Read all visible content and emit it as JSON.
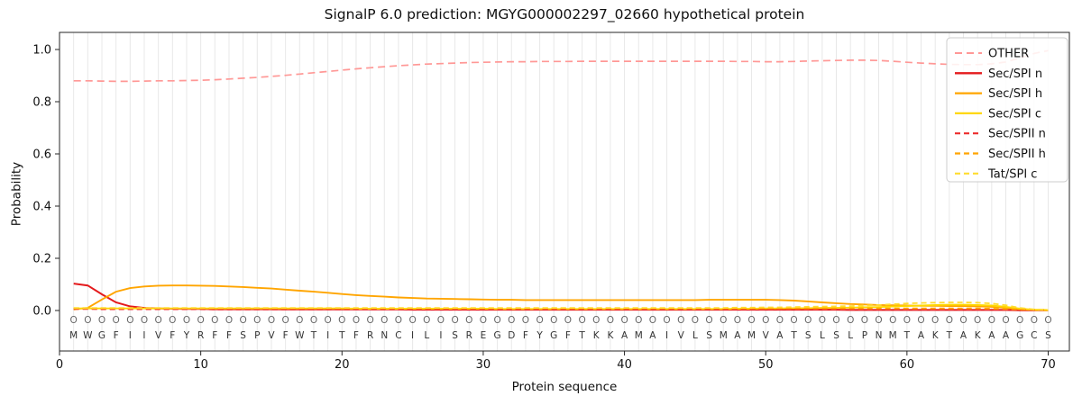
{
  "figure": {
    "title": "SignalP 6.0 prediction: MGYG000002297_02660 hypothetical protein",
    "xlabel": "Protein sequence",
    "ylabel": "Probability"
  },
  "chart_data": {
    "type": "line",
    "title": "SignalP 6.0 prediction: MGYG000002297_02660 hypothetical protein",
    "xlabel": "Protein sequence",
    "ylabel": "Probability",
    "xlim": [
      0,
      71.5
    ],
    "ylim": [
      -0.155,
      1.065
    ],
    "x_ticks": [
      0,
      10,
      20,
      30,
      40,
      50,
      60,
      70
    ],
    "y_ticks": [
      0.0,
      0.2,
      0.4,
      0.6,
      0.8,
      1.0
    ],
    "grid": "vertical line at every residue position",
    "legend_position": "upper right",
    "sequence": "MWGFIIVFYRFFSPVFWTITFRNCILISREGDFYGFTKKAMAIVLSMAMVATSLSLPNMTAKTAKAAGCS",
    "predicted_labels": "OOOOOOOOOOOOOOOOOOOOOOOOOOOOOOOOOOOOOOOOOOOOOOOOOOOOOOOOOOOOOOOOOOOOOO",
    "x": [
      1,
      2,
      3,
      4,
      5,
      6,
      7,
      8,
      9,
      10,
      11,
      12,
      13,
      14,
      15,
      16,
      17,
      18,
      19,
      20,
      21,
      22,
      23,
      24,
      25,
      26,
      27,
      28,
      29,
      30,
      31,
      32,
      33,
      34,
      35,
      36,
      37,
      38,
      39,
      40,
      41,
      42,
      43,
      44,
      45,
      46,
      47,
      48,
      49,
      50,
      51,
      52,
      53,
      54,
      55,
      56,
      57,
      58,
      59,
      60,
      61,
      62,
      63,
      64,
      65,
      66,
      67,
      68,
      69,
      70
    ],
    "series": [
      {
        "name": "OTHER",
        "color": "#ff9896",
        "dash": "8,5",
        "width": 1.7,
        "values": [
          0.88,
          0.88,
          0.879,
          0.878,
          0.878,
          0.879,
          0.88,
          0.88,
          0.881,
          0.882,
          0.884,
          0.887,
          0.89,
          0.893,
          0.897,
          0.901,
          0.906,
          0.911,
          0.916,
          0.921,
          0.926,
          0.93,
          0.934,
          0.938,
          0.941,
          0.944,
          0.946,
          0.948,
          0.95,
          0.951,
          0.952,
          0.953,
          0.953,
          0.954,
          0.954,
          0.954,
          0.955,
          0.955,
          0.955,
          0.955,
          0.955,
          0.955,
          0.955,
          0.955,
          0.955,
          0.955,
          0.955,
          0.954,
          0.954,
          0.953,
          0.953,
          0.954,
          0.956,
          0.957,
          0.958,
          0.959,
          0.959,
          0.958,
          0.955,
          0.951,
          0.948,
          0.945,
          0.943,
          0.942,
          0.942,
          0.945,
          0.952,
          0.968,
          0.985,
          0.996
        ]
      },
      {
        "name": "Sec/SPI n",
        "color": "#e41a1c",
        "dash": null,
        "width": 2,
        "values": [
          0.103,
          0.096,
          0.062,
          0.031,
          0.016,
          0.01,
          0.008,
          0.007,
          0.006,
          0.006,
          0.005,
          0.005,
          0.005,
          0.005,
          0.005,
          0.004,
          0.004,
          0.004,
          0.004,
          0.004,
          0.004,
          0.004,
          0.004,
          0.004,
          0.003,
          0.003,
          0.003,
          0.003,
          0.003,
          0.003,
          0.003,
          0.003,
          0.003,
          0.003,
          0.003,
          0.003,
          0.003,
          0.003,
          0.003,
          0.003,
          0.003,
          0.003,
          0.003,
          0.003,
          0.003,
          0.003,
          0.003,
          0.003,
          0.003,
          0.003,
          0.003,
          0.003,
          0.003,
          0.003,
          0.003,
          0.002,
          0.002,
          0.002,
          0.002,
          0.002,
          0.002,
          0.002,
          0.002,
          0.002,
          0.002,
          0.002,
          0.002,
          0.001,
          0.001,
          0.001
        ]
      },
      {
        "name": "Sec/SPI h",
        "color": "#ffa500",
        "dash": null,
        "width": 1.9,
        "values": [
          0.004,
          0.01,
          0.042,
          0.072,
          0.086,
          0.092,
          0.095,
          0.096,
          0.096,
          0.095,
          0.094,
          0.092,
          0.09,
          0.087,
          0.084,
          0.08,
          0.076,
          0.072,
          0.068,
          0.063,
          0.059,
          0.056,
          0.053,
          0.05,
          0.048,
          0.046,
          0.045,
          0.044,
          0.043,
          0.042,
          0.041,
          0.041,
          0.04,
          0.04,
          0.04,
          0.04,
          0.04,
          0.04,
          0.04,
          0.04,
          0.04,
          0.04,
          0.04,
          0.04,
          0.04,
          0.041,
          0.041,
          0.041,
          0.041,
          0.041,
          0.04,
          0.038,
          0.035,
          0.031,
          0.028,
          0.025,
          0.023,
          0.021,
          0.02,
          0.019,
          0.018,
          0.018,
          0.017,
          0.017,
          0.016,
          0.014,
          0.01,
          0.005,
          0.002,
          0.001
        ]
      },
      {
        "name": "Sec/SPI c",
        "color": "#ffd700",
        "dash": null,
        "width": 1.9,
        "values": [
          0.008,
          0.008,
          0.008,
          0.008,
          0.008,
          0.008,
          0.008,
          0.008,
          0.008,
          0.008,
          0.008,
          0.008,
          0.008,
          0.008,
          0.008,
          0.008,
          0.008,
          0.008,
          0.008,
          0.008,
          0.007,
          0.007,
          0.007,
          0.007,
          0.007,
          0.007,
          0.007,
          0.007,
          0.007,
          0.007,
          0.006,
          0.006,
          0.006,
          0.006,
          0.006,
          0.006,
          0.006,
          0.006,
          0.006,
          0.006,
          0.006,
          0.006,
          0.006,
          0.006,
          0.006,
          0.006,
          0.006,
          0.007,
          0.007,
          0.008,
          0.008,
          0.009,
          0.009,
          0.01,
          0.01,
          0.011,
          0.012,
          0.013,
          0.015,
          0.017,
          0.019,
          0.021,
          0.022,
          0.022,
          0.021,
          0.019,
          0.014,
          0.007,
          0.003,
          0.002
        ]
      },
      {
        "name": "Sec/SPII n",
        "color": "#ed2d2d",
        "dash": "6,4",
        "width": 1.8,
        "values": [
          0.006,
          0.006,
          0.005,
          0.005,
          0.005,
          0.005,
          0.005,
          0.005,
          0.005,
          0.005,
          0.004,
          0.004,
          0.004,
          0.004,
          0.004,
          0.004,
          0.004,
          0.004,
          0.004,
          0.004,
          0.004,
          0.004,
          0.004,
          0.004,
          0.004,
          0.004,
          0.004,
          0.004,
          0.004,
          0.004,
          0.004,
          0.004,
          0.004,
          0.004,
          0.004,
          0.004,
          0.004,
          0.004,
          0.004,
          0.004,
          0.004,
          0.004,
          0.004,
          0.004,
          0.004,
          0.004,
          0.004,
          0.004,
          0.004,
          0.004,
          0.004,
          0.004,
          0.004,
          0.004,
          0.004,
          0.003,
          0.003,
          0.003,
          0.003,
          0.003,
          0.003,
          0.003,
          0.003,
          0.003,
          0.003,
          0.003,
          0.002,
          0.002,
          0.002,
          0.002
        ]
      },
      {
        "name": "Sec/SPII h",
        "color": "#ffa500",
        "dash": "6,4",
        "width": 1.8,
        "values": [
          0.008,
          0.008,
          0.008,
          0.008,
          0.008,
          0.008,
          0.008,
          0.008,
          0.008,
          0.008,
          0.008,
          0.008,
          0.008,
          0.008,
          0.008,
          0.008,
          0.008,
          0.008,
          0.008,
          0.008,
          0.008,
          0.008,
          0.008,
          0.008,
          0.008,
          0.008,
          0.008,
          0.008,
          0.008,
          0.008,
          0.008,
          0.008,
          0.008,
          0.008,
          0.008,
          0.008,
          0.008,
          0.008,
          0.008,
          0.008,
          0.008,
          0.008,
          0.008,
          0.008,
          0.008,
          0.008,
          0.008,
          0.008,
          0.008,
          0.008,
          0.008,
          0.008,
          0.008,
          0.008,
          0.008,
          0.008,
          0.008,
          0.008,
          0.008,
          0.008,
          0.008,
          0.008,
          0.008,
          0.008,
          0.008,
          0.007,
          0.006,
          0.004,
          0.003,
          0.002
        ]
      },
      {
        "name": "Tat/SPI c",
        "color": "#ffdd30",
        "dash": "6,4",
        "width": 1.8,
        "values": [
          0.01,
          0.01,
          0.01,
          0.01,
          0.01,
          0.01,
          0.01,
          0.01,
          0.01,
          0.01,
          0.01,
          0.01,
          0.01,
          0.01,
          0.01,
          0.01,
          0.01,
          0.01,
          0.01,
          0.01,
          0.01,
          0.01,
          0.01,
          0.01,
          0.01,
          0.01,
          0.01,
          0.01,
          0.01,
          0.01,
          0.01,
          0.01,
          0.01,
          0.01,
          0.01,
          0.01,
          0.01,
          0.01,
          0.01,
          0.01,
          0.01,
          0.01,
          0.01,
          0.01,
          0.01,
          0.01,
          0.01,
          0.011,
          0.011,
          0.012,
          0.012,
          0.013,
          0.014,
          0.015,
          0.016,
          0.017,
          0.019,
          0.021,
          0.024,
          0.027,
          0.029,
          0.03,
          0.031,
          0.031,
          0.03,
          0.027,
          0.02,
          0.01,
          0.004,
          0.002
        ]
      }
    ]
  }
}
